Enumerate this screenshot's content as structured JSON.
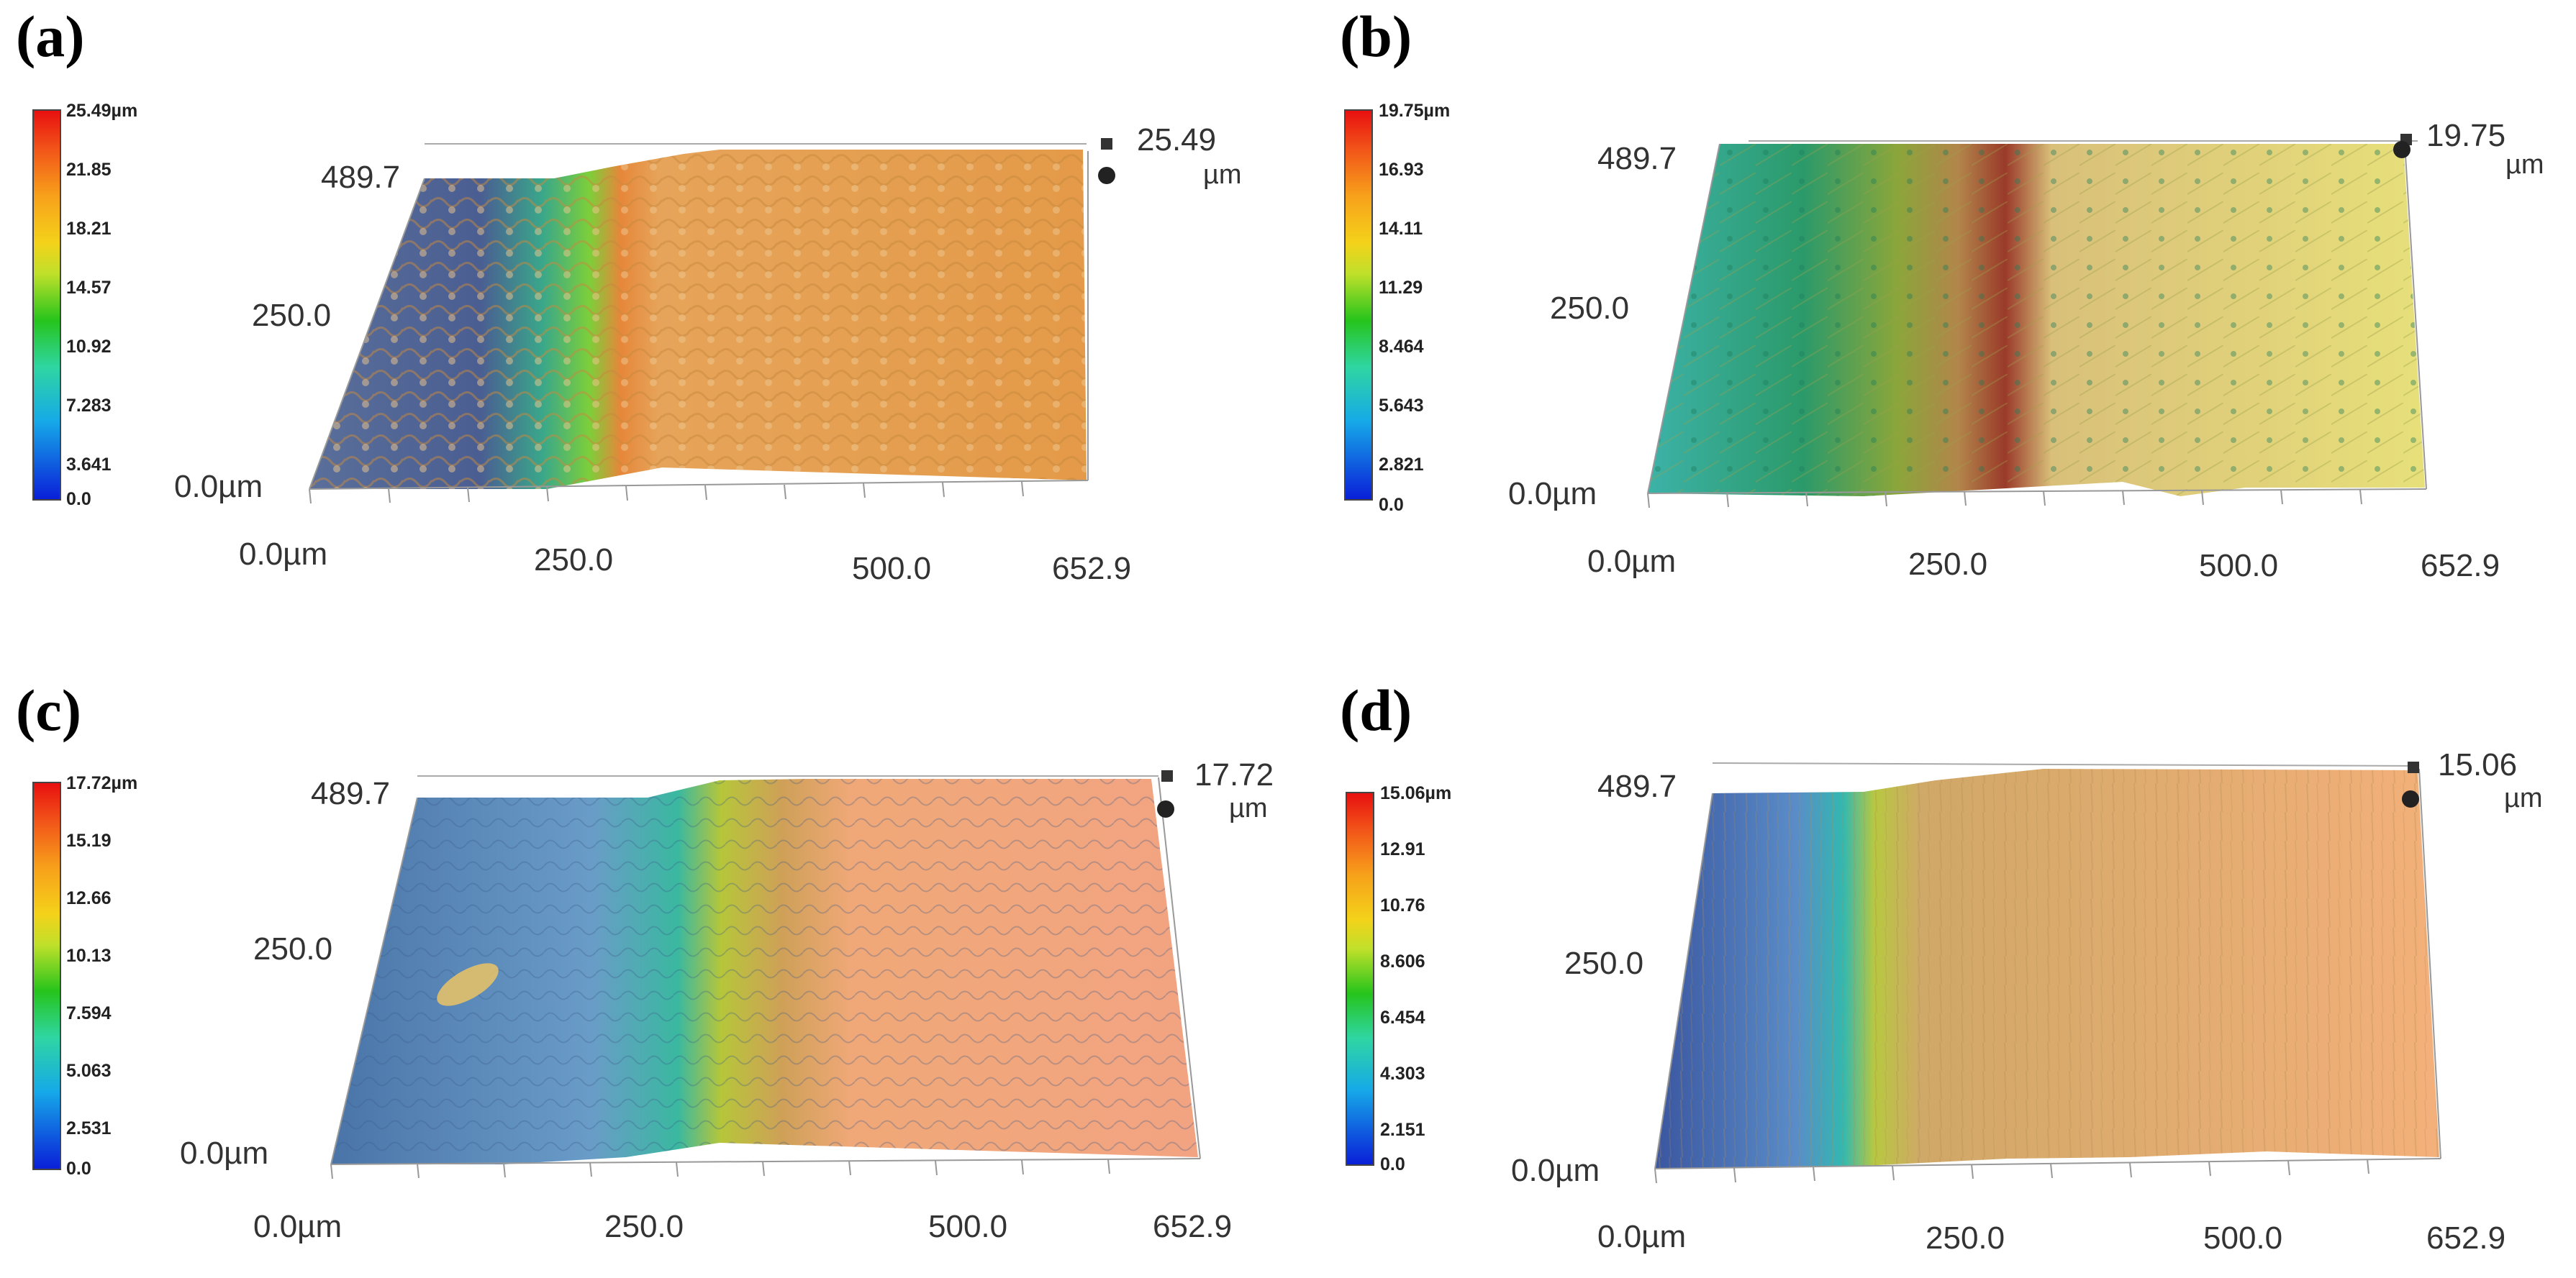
{
  "panels": [
    {
      "id": "a",
      "label": "(a)",
      "max_label": "25.49",
      "colorbar": [
        "25.49µm",
        "21.85",
        "18.21",
        "14.57",
        "10.92",
        "7.283",
        "3.641",
        "0.0"
      ],
      "unit": "µm",
      "y_ticks": [
        "489.7",
        "250.0",
        "0.0µm"
      ],
      "x_ticks": [
        "0.0µm",
        "250.0",
        "500.0",
        "652.9"
      ]
    },
    {
      "id": "b",
      "label": "(b)",
      "max_label": "19.75",
      "colorbar": [
        "19.75µm",
        "16.93",
        "14.11",
        "11.29",
        "8.464",
        "5.643",
        "2.821",
        "0.0"
      ],
      "unit": "µm",
      "y_ticks": [
        "489.7",
        "250.0",
        "0.0µm"
      ],
      "x_ticks": [
        "0.0µm",
        "250.0",
        "500.0",
        "652.9"
      ]
    },
    {
      "id": "c",
      "label": "(c)",
      "max_label": "17.72",
      "colorbar": [
        "17.72µm",
        "15.19",
        "12.66",
        "10.13",
        "7.594",
        "5.063",
        "2.531",
        "0.0"
      ],
      "unit": "µm",
      "y_ticks": [
        "489.7",
        "250.0",
        "0.0µm"
      ],
      "x_ticks": [
        "0.0µm",
        "250.0",
        "500.0",
        "652.9"
      ]
    },
    {
      "id": "d",
      "label": "(d)",
      "max_label": "15.06",
      "colorbar": [
        "15.06µm",
        "12.91",
        "10.76",
        "8.606",
        "6.454",
        "4.303",
        "2.151",
        "0.0"
      ],
      "unit": "µm",
      "y_ticks": [
        "489.7",
        "250.0",
        "0.0µm"
      ],
      "x_ticks": [
        "0.0µm",
        "250.0",
        "500.0",
        "652.9"
      ]
    }
  ]
}
